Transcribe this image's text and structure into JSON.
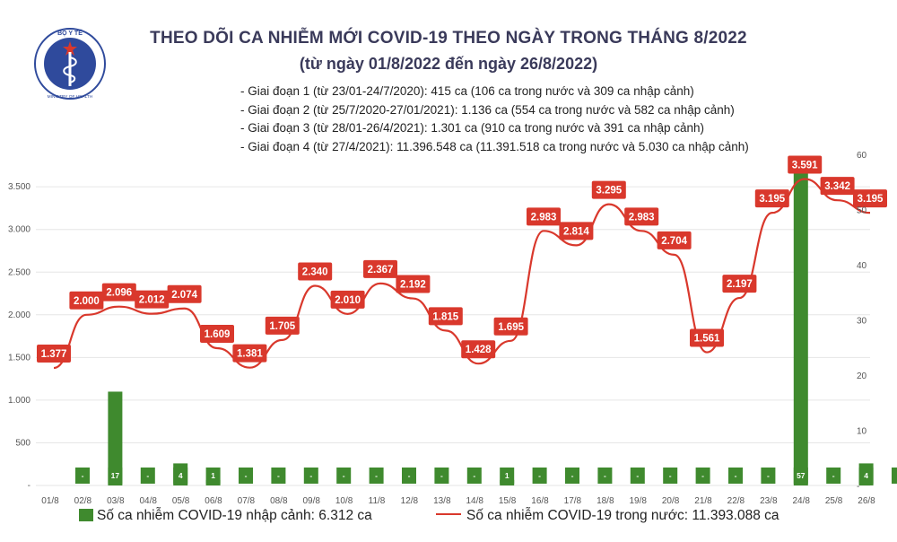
{
  "header": {
    "title": "THEO DÕI CA NHIỄM MỚI COVID-19 THEO NGÀY TRONG THÁNG 8/2022",
    "subtitle": "(từ ngày 01/8/2022 đến ngày 26/8/2022)",
    "logo_text": "BỘ Y TẾ",
    "logo_subtext": "MINISTRY OF HEALTH"
  },
  "notes": [
    "- Giai đoạn 1 (từ 23/01-24/7/2020): 415 ca (106 ca trong nước và 309 ca nhập cảnh)",
    "- Giai đoạn 2 (từ 25/7/2020-27/01/2021): 1.136 ca (554 ca trong nước và 582 ca nhập cảnh)",
    "- Giai đoạn 3 (từ 28/01-26/4/2021): 1.301 ca (910 ca trong nước và 391 ca nhập cảnh)",
    "- Giai đoạn 4 (từ 27/4/2021): 11.396.548 ca (11.391.518 ca trong nước và 5.030 ca nhập cảnh)"
  ],
  "legend": {
    "bar_label": "Số ca nhiễm COVID-19 nhập cảnh: 6.312 ca",
    "line_label": "Số ca nhiễm COVID-19 trong nước: 11.393.088 ca"
  },
  "colors": {
    "line": "#d9382c",
    "bar": "#3f8a2e",
    "title": "#3a3a5a",
    "grid": "#e6e6e6"
  },
  "chart_data": {
    "type": "bar+line",
    "categories": [
      "01/8",
      "02/8",
      "03/8",
      "04/8",
      "05/8",
      "06/8",
      "07/8",
      "08/8",
      "09/8",
      "10/8",
      "11/8",
      "12/8",
      "13/8",
      "14/8",
      "15/8",
      "16/8",
      "17/8",
      "18/8",
      "19/8",
      "20/8",
      "21/8",
      "22/8",
      "23/8",
      "24/8",
      "25/8",
      "26/8"
    ],
    "series": [
      {
        "name": "Số ca nhiễm COVID-19 trong nước",
        "type": "line",
        "axis": "left",
        "values": [
          1377,
          2000,
          2096,
          2012,
          2074,
          1609,
          1381,
          1705,
          2340,
          2010,
          2367,
          2192,
          1815,
          1428,
          1695,
          2983,
          2814,
          3295,
          2983,
          2704,
          1561,
          2197,
          3195,
          3591,
          3342,
          3195
        ],
        "labels": [
          "1.377",
          "2.000",
          "2.096",
          "2.012",
          "2.074",
          "1.609",
          "1.381",
          "1.705",
          "2.340",
          "2.010",
          "2.367",
          "2.192",
          "1.815",
          "1.428",
          "1.695",
          "2.983",
          "2.814",
          "3.295",
          "2.983",
          "2.704",
          "1.561",
          "2.197",
          "3.195",
          "3.591",
          "3.342",
          "3.195"
        ]
      },
      {
        "name": "Số ca nhiễm COVID-19 nhập cảnh",
        "type": "bar",
        "axis": "right",
        "values": [
          0,
          17,
          0,
          4,
          1,
          0,
          0,
          0,
          0,
          0,
          0,
          0,
          0,
          1,
          0,
          0,
          0,
          0,
          0,
          0,
          0,
          0,
          57,
          0,
          4,
          0
        ],
        "labels": [
          "-",
          "17",
          "-",
          "4",
          "1",
          "-",
          "-",
          "-",
          "-",
          "-",
          "-",
          "-",
          "-",
          "1",
          "-",
          "-",
          "-",
          "-",
          "-",
          "-",
          "-",
          "-",
          "57",
          "-",
          "4",
          "-"
        ]
      }
    ],
    "ylim_left": [
      0,
      4000
    ],
    "yticks_left": [
      0,
      500,
      1000,
      1500,
      2000,
      2500,
      3000,
      3500
    ],
    "ytick_labels_left": [
      "-",
      "500",
      "1.000",
      "1.500",
      "2.000",
      "2.500",
      "3.000",
      "3.500"
    ],
    "ylim_right": [
      0,
      60
    ],
    "yticks_right": [
      0,
      10,
      20,
      30,
      40,
      50,
      60
    ],
    "ytick_labels_right": [
      "-",
      "10",
      "20",
      "30",
      "40",
      "50",
      "60"
    ],
    "grid": true,
    "legend_position": "bottom"
  }
}
